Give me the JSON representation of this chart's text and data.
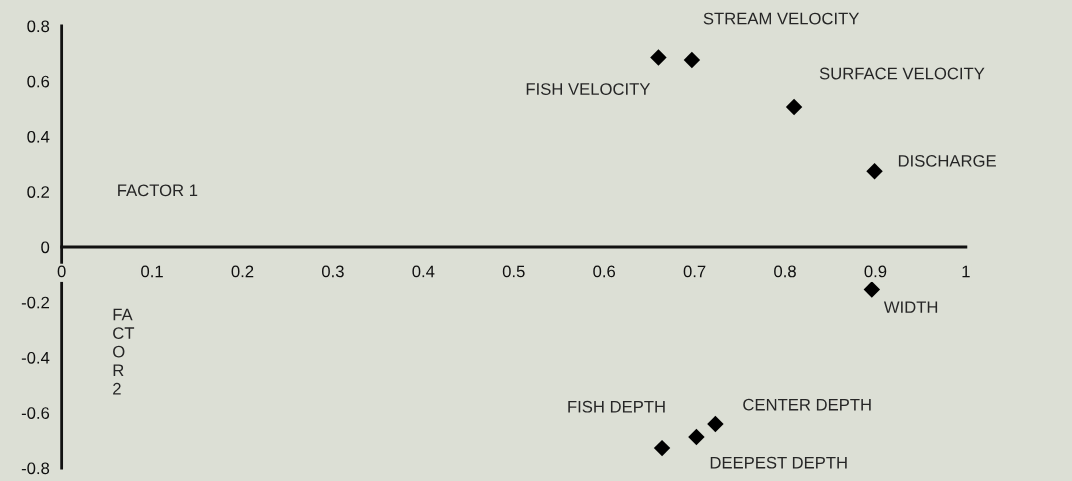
{
  "chart_data": {
    "type": "scatter",
    "xlabel": "FACTOR 1",
    "ylabel": "FA\nCT\nO\nR\n2",
    "x": [
      0.66,
      0.697,
      0.81,
      0.899,
      0.896,
      0.664,
      0.702,
      0.723
    ],
    "values": [
      0.686,
      0.677,
      0.507,
      0.274,
      -0.154,
      -0.728,
      -0.688,
      -0.641
    ],
    "color": "#000000",
    "marker": "diamond",
    "xlim": [
      0,
      1
    ],
    "xticks": [
      0,
      0.1,
      0.2,
      0.3,
      0.4,
      0.5,
      0.6,
      0.7,
      0.8,
      0.9,
      1
    ],
    "ylim": [
      -0.8,
      0.8
    ],
    "yticks": [
      -0.8,
      -0.6,
      -0.4,
      -0.2,
      0,
      0.2,
      0.4,
      0.6,
      0.8
    ],
    "grid": false,
    "legend": false,
    "annotations": [
      {
        "text": "FISH VELOCITY",
        "x": 0.66,
        "y": 0.686
      },
      {
        "text": "STREAM VELOCITY",
        "x": 0.697,
        "y": 0.677
      },
      {
        "text": "SURFACE VELOCITY",
        "x": 0.81,
        "y": 0.507
      },
      {
        "text": "DISCHARGE",
        "x": 0.899,
        "y": 0.274
      },
      {
        "text": "WIDTH",
        "x": 0.896,
        "y": -0.154
      },
      {
        "text": "FISH DEPTH",
        "x": 0.664,
        "y": -0.728
      },
      {
        "text": "DEEPEST DEPTH",
        "x": 0.702,
        "y": -0.688
      },
      {
        "text": "CENTER DEPTH",
        "x": 0.723,
        "y": -0.641
      }
    ]
  }
}
